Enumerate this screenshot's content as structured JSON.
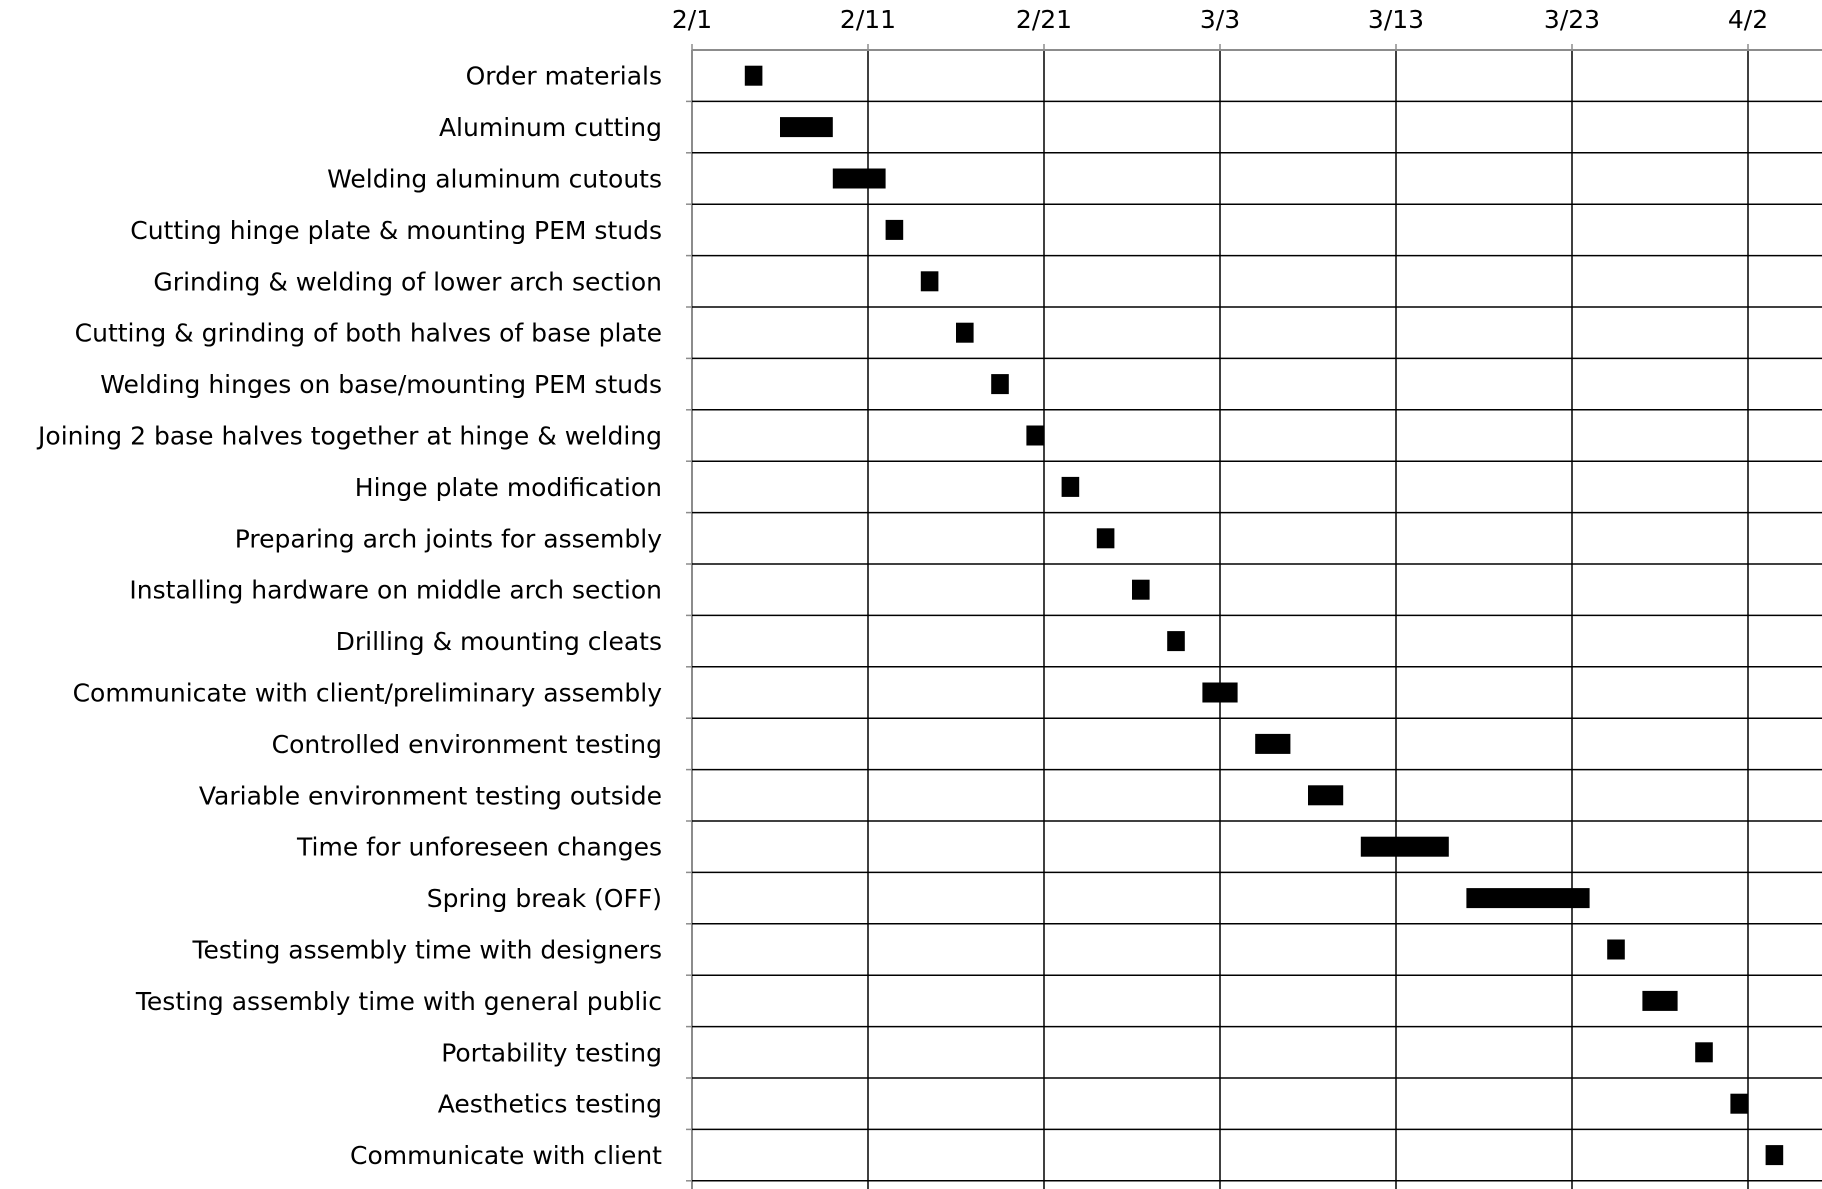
{
  "chart_data": {
    "type": "gantt",
    "title": "",
    "xlabel": "",
    "ylabel": "",
    "year": 2023,
    "x_range": [
      "2/1",
      "4/4"
    ],
    "x_ticks": [
      "2/1",
      "2/11",
      "2/21",
      "3/3",
      "3/13",
      "3/23",
      "4/2"
    ],
    "grid": true,
    "bar_color": "#000000",
    "grid_color": "#000000",
    "axis_color": "#8c8c8c",
    "tasks": [
      {
        "name": "Order materials",
        "start": "2/4",
        "end": "2/5"
      },
      {
        "name": "Aluminum cutting",
        "start": "2/6",
        "end": "2/9"
      },
      {
        "name": "Welding aluminum cutouts",
        "start": "2/9",
        "end": "2/12"
      },
      {
        "name": "Cutting hinge plate & mounting PEM studs",
        "start": "2/12",
        "end": "2/13"
      },
      {
        "name": "Grinding & welding of lower arch section",
        "start": "2/14",
        "end": "2/15"
      },
      {
        "name": "Cutting & grinding of both halves of base plate",
        "start": "2/16",
        "end": "2/17"
      },
      {
        "name": "Welding hinges on base/mounting PEM studs",
        "start": "2/18",
        "end": "2/19"
      },
      {
        "name": "Joining 2 base halves together at hinge & welding",
        "start": "2/20",
        "end": "2/21"
      },
      {
        "name": "Hinge plate modification",
        "start": "2/22",
        "end": "2/23"
      },
      {
        "name": "Preparing arch joints for assembly",
        "start": "2/24",
        "end": "2/25"
      },
      {
        "name": "Installing hardware on middle arch section",
        "start": "2/26",
        "end": "2/27"
      },
      {
        "name": "Drilling & mounting cleats",
        "start": "2/28",
        "end": "3/1"
      },
      {
        "name": "Communicate with client/preliminary assembly",
        "start": "3/2",
        "end": "3/4"
      },
      {
        "name": "Controlled environment testing",
        "start": "3/5",
        "end": "3/7"
      },
      {
        "name": "Variable environment testing outside",
        "start": "3/8",
        "end": "3/10"
      },
      {
        "name": "Time for unforeseen changes",
        "start": "3/11",
        "end": "3/16"
      },
      {
        "name": "Spring break (OFF)",
        "start": "3/17",
        "end": "3/24"
      },
      {
        "name": "Testing assembly time with designers",
        "start": "3/25",
        "end": "3/26"
      },
      {
        "name": "Testing assembly time with general public",
        "start": "3/27",
        "end": "3/29"
      },
      {
        "name": "Portability testing",
        "start": "3/30",
        "end": "3/31"
      },
      {
        "name": "Aesthetics testing",
        "start": "4/1",
        "end": "4/2"
      },
      {
        "name": "Communicate with client",
        "start": "4/3",
        "end": "4/4"
      }
    ]
  }
}
